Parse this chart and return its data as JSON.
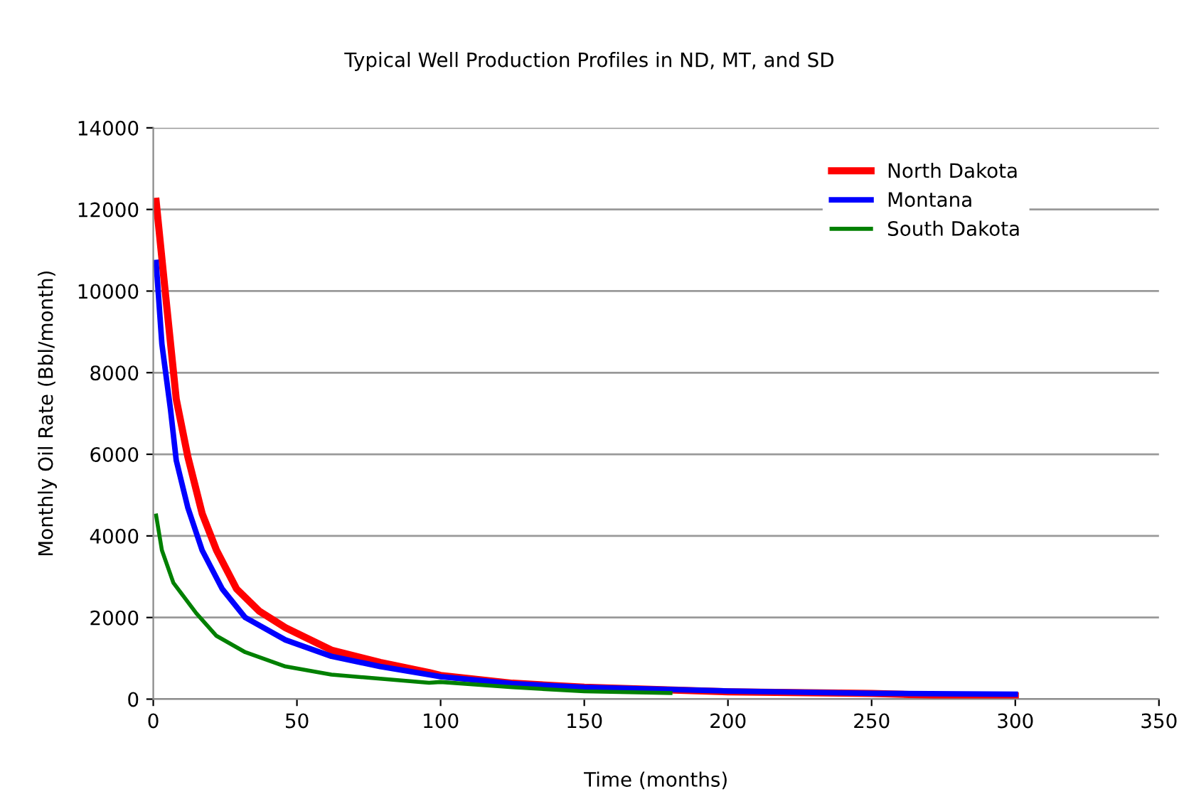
{
  "chart_data": {
    "type": "line",
    "title": "Typical Well Production Profiles in ND, MT, and SD",
    "xlabel": "Time (months)",
    "ylabel": "Monthly Oil Rate (Bbl/month)",
    "xlim": [
      0,
      350
    ],
    "xticks": [
      0,
      50,
      100,
      150,
      200,
      250,
      300,
      350
    ],
    "ylim": [
      0,
      14000
    ],
    "yticks": [
      0,
      2000,
      4000,
      6000,
      8000,
      10000,
      12000,
      14000
    ],
    "grid": "y",
    "legend": "top right",
    "marker": "none",
    "line_style": "solid",
    "series": [
      {
        "name": "North Dakota",
        "color": "#ff0000",
        "x": [
          1,
          4,
          8,
          12,
          17,
          22,
          29,
          37,
          46,
          62,
          79,
          96,
          100,
          125,
          150,
          200,
          250,
          280,
          300
        ],
        "values": [
          12200,
          10100,
          7350,
          5950,
          4550,
          3650,
          2700,
          2150,
          1750,
          1200,
          900,
          650,
          580,
          390,
          290,
          180,
          140,
          80,
          80
        ]
      },
      {
        "name": "Montana",
        "color": "#0000ff",
        "x": [
          1,
          3,
          6,
          8,
          12,
          17,
          24,
          32,
          46,
          62,
          79,
          96,
          100,
          125,
          150,
          200,
          250,
          280,
          300
        ],
        "values": [
          10700,
          8700,
          7100,
          5850,
          4700,
          3650,
          2700,
          2000,
          1450,
          1050,
          800,
          600,
          550,
          380,
          290,
          200,
          140,
          130,
          120
        ]
      },
      {
        "name": "South Dakota",
        "color": "#008000",
        "x": [
          1,
          3,
          7,
          15,
          22,
          32,
          46,
          62,
          79,
          96,
          100,
          125,
          150,
          180
        ],
        "values": [
          4500,
          3650,
          2850,
          2100,
          1550,
          1150,
          800,
          600,
          500,
          400,
          420,
          290,
          190,
          150
        ]
      }
    ]
  }
}
